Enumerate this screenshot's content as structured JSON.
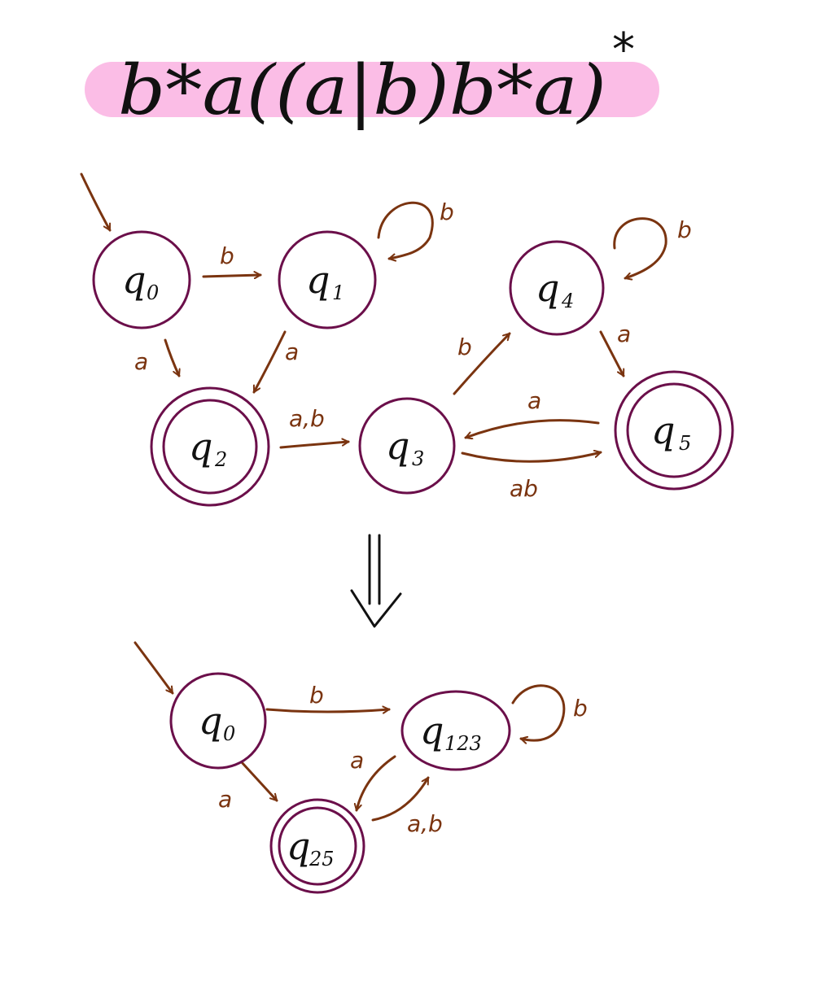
{
  "title": {
    "regex": "b*a((a|b)b*a)",
    "outer_star": "*",
    "highlight_color": "#fbbde6"
  },
  "colors": {
    "state_stroke": "#6b0f4a",
    "edge": "#7a3410",
    "text": "#111111"
  },
  "nfa": {
    "states": [
      {
        "id": "q0",
        "letter": "q",
        "sub": "0",
        "accepting": false
      },
      {
        "id": "q1",
        "letter": "q",
        "sub": "1",
        "accepting": false
      },
      {
        "id": "q2",
        "letter": "q",
        "sub": "2",
        "accepting": true
      },
      {
        "id": "q3",
        "letter": "q",
        "sub": "3",
        "accepting": false
      },
      {
        "id": "q4",
        "letter": "q",
        "sub": "4",
        "accepting": false
      },
      {
        "id": "q5",
        "letter": "q",
        "sub": "5",
        "accepting": true
      }
    ],
    "start": "q0",
    "edges": [
      {
        "from": "q0",
        "to": "q1",
        "label": "b"
      },
      {
        "from": "q1",
        "to": "q1",
        "label": "b"
      },
      {
        "from": "q0",
        "to": "q2",
        "label": "a"
      },
      {
        "from": "q1",
        "to": "q2",
        "label": "a"
      },
      {
        "from": "q2",
        "to": "q3",
        "label": "a,b"
      },
      {
        "from": "q3",
        "to": "q4",
        "label": "b"
      },
      {
        "from": "q4",
        "to": "q4",
        "label": "b"
      },
      {
        "from": "q4",
        "to": "q5",
        "label": "a"
      },
      {
        "from": "q5",
        "to": "q3",
        "label": "a"
      },
      {
        "from": "q3",
        "to": "q5",
        "label": "ab"
      }
    ]
  },
  "transform_symbol": "⇓",
  "dfa": {
    "states": [
      {
        "id": "q0",
        "letter": "q",
        "sub": "0",
        "accepting": false
      },
      {
        "id": "q123",
        "letter": "q",
        "sub": "123",
        "accepting": false
      },
      {
        "id": "q25",
        "letter": "q",
        "sub": "25",
        "accepting": true
      }
    ],
    "start": "q0",
    "edges": [
      {
        "from": "q0",
        "to": "q123",
        "label": "b"
      },
      {
        "from": "q123",
        "to": "q123",
        "label": "b"
      },
      {
        "from": "q0",
        "to": "q25",
        "label": "a"
      },
      {
        "from": "q123",
        "to": "q25",
        "label": "a"
      },
      {
        "from": "q25",
        "to": "q123",
        "label": "a,b"
      }
    ]
  }
}
